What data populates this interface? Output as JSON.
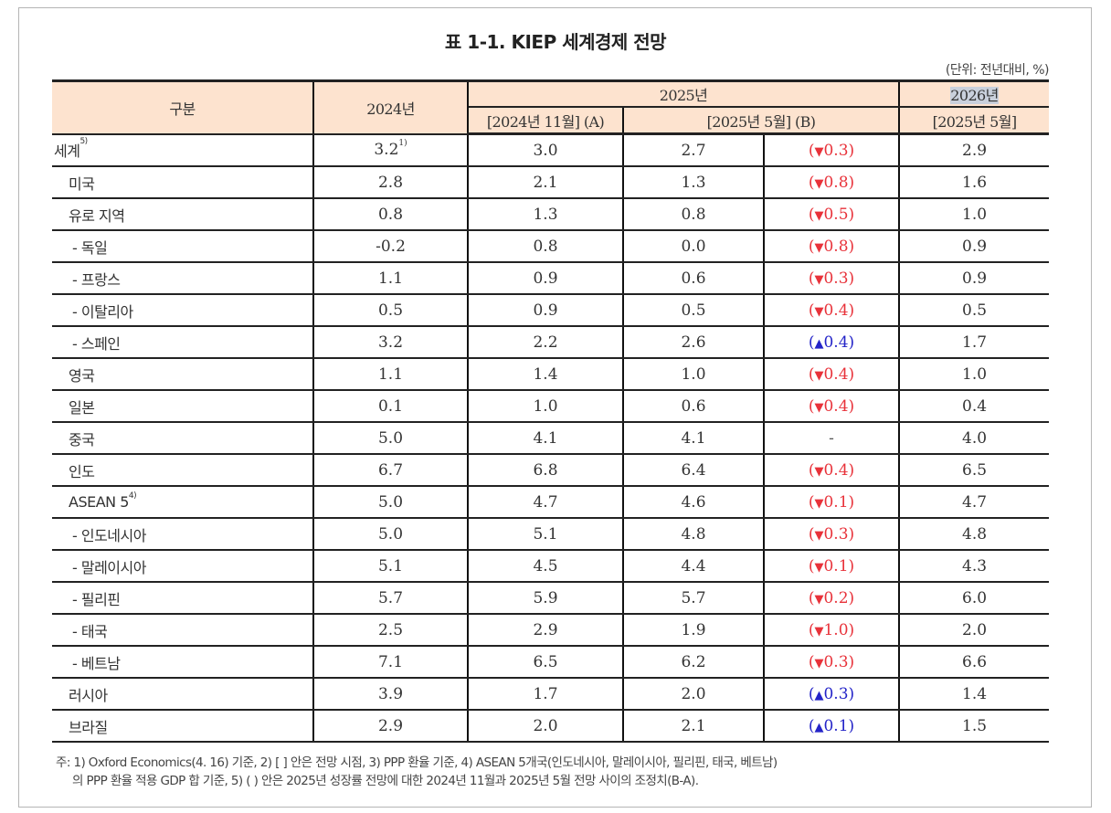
{
  "document": {
    "title": "표 1-1. KIEP 세계경제 전망",
    "unit": "(단위: 전년대비, %)"
  },
  "table": {
    "header": {
      "col_label": "구분",
      "col_2024": "2024년",
      "group_2025": "2025년",
      "group_2026": "2026년",
      "col_a": "[2024년 11월] (A)",
      "col_b": "[2025년 5월] (B)",
      "col_2026": "[2025년 5월]"
    },
    "rows": [
      {
        "label": "세계",
        "label_sup": "5)",
        "indent": 0,
        "y2024": "3.2",
        "y2024_sup": "1)",
        "a": "3.0",
        "b": "2.7",
        "diff": "0.3",
        "dir": "down",
        "y2026": "2.9"
      },
      {
        "label": "미국",
        "indent": 1,
        "y2024": "2.8",
        "a": "2.1",
        "b": "1.3",
        "diff": "0.8",
        "dir": "down",
        "y2026": "1.6"
      },
      {
        "label": "유로 지역",
        "indent": 1,
        "y2024": "0.8",
        "a": "1.3",
        "b": "0.8",
        "diff": "0.5",
        "dir": "down",
        "y2026": "1.0"
      },
      {
        "label": "- 독일",
        "indent": 2,
        "y2024": "-0.2",
        "a": "0.8",
        "b": "0.0",
        "diff": "0.8",
        "dir": "down",
        "y2026": "0.9"
      },
      {
        "label": "- 프랑스",
        "indent": 2,
        "y2024": "1.1",
        "a": "0.9",
        "b": "0.6",
        "diff": "0.3",
        "dir": "down",
        "y2026": "0.9"
      },
      {
        "label": "- 이탈리아",
        "indent": 2,
        "y2024": "0.5",
        "a": "0.9",
        "b": "0.5",
        "diff": "0.4",
        "dir": "down",
        "y2026": "0.5"
      },
      {
        "label": "- 스페인",
        "indent": 2,
        "y2024": "3.2",
        "a": "2.2",
        "b": "2.6",
        "diff": "0.4",
        "dir": "up",
        "y2026": "1.7"
      },
      {
        "label": "영국",
        "indent": 1,
        "y2024": "1.1",
        "a": "1.4",
        "b": "1.0",
        "diff": "0.4",
        "dir": "down",
        "y2026": "1.0"
      },
      {
        "label": "일본",
        "indent": 1,
        "y2024": "0.1",
        "a": "1.0",
        "b": "0.6",
        "diff": "0.4",
        "dir": "down",
        "y2026": "0.4"
      },
      {
        "label": "중국",
        "indent": 1,
        "y2024": "5.0",
        "a": "4.1",
        "b": "4.1",
        "diff": "-",
        "dir": "none",
        "y2026": "4.0"
      },
      {
        "label": "인도",
        "indent": 1,
        "y2024": "6.7",
        "a": "6.8",
        "b": "6.4",
        "diff": "0.4",
        "dir": "down",
        "y2026": "6.5"
      },
      {
        "label": "ASEAN 5",
        "label_sup": "4)",
        "indent": 1,
        "y2024": "5.0",
        "a": "4.7",
        "b": "4.6",
        "diff": "0.1",
        "dir": "down",
        "y2026": "4.7"
      },
      {
        "label": "- 인도네시아",
        "indent": 2,
        "y2024": "5.0",
        "a": "5.1",
        "b": "4.8",
        "diff": "0.3",
        "dir": "down",
        "y2026": "4.8"
      },
      {
        "label": "- 말레이시아",
        "indent": 2,
        "y2024": "5.1",
        "a": "4.5",
        "b": "4.4",
        "diff": "0.1",
        "dir": "down",
        "y2026": "4.3"
      },
      {
        "label": "- 필리핀",
        "indent": 2,
        "y2024": "5.7",
        "a": "5.9",
        "b": "5.7",
        "diff": "0.2",
        "dir": "down",
        "y2026": "6.0"
      },
      {
        "label": "- 태국",
        "indent": 2,
        "y2024": "2.5",
        "a": "2.9",
        "b": "1.9",
        "diff": "1.0",
        "dir": "down",
        "y2026": "2.0"
      },
      {
        "label": "- 베트남",
        "indent": 2,
        "y2024": "7.1",
        "a": "6.5",
        "b": "6.2",
        "diff": "0.3",
        "dir": "down",
        "y2026": "6.6"
      },
      {
        "label": "러시아",
        "indent": 1,
        "y2024": "3.9",
        "a": "1.7",
        "b": "2.0",
        "diff": "0.3",
        "dir": "up",
        "y2026": "1.4"
      },
      {
        "label": "브라질",
        "indent": 1,
        "y2024": "2.9",
        "a": "2.0",
        "b": "2.1",
        "diff": "0.1",
        "dir": "up",
        "y2026": "1.5"
      }
    ],
    "symbols": {
      "down": "▼",
      "up": "▲",
      "open": "(",
      "close": ")"
    },
    "colors": {
      "down": "#e8323a",
      "up": "#2424c8",
      "header_bg": "#fde3cf"
    }
  },
  "notes": {
    "line1": "주: 1) Oxford Economics(4. 16) 기준, 2) [ ] 안은 전망 시점, 3) PPP 환율 기준, 4) ASEAN 5개국(인도네시아, 말레이시아, 필리핀, 태국, 베트남)",
    "line2": "의 PPP 환율 적용 GDP 합 기준, 5) ( ) 안은 2025년 성장률 전망에 대한 2024년 11월과 2025년 5월 전망 사이의 조정치(B-A)."
  }
}
